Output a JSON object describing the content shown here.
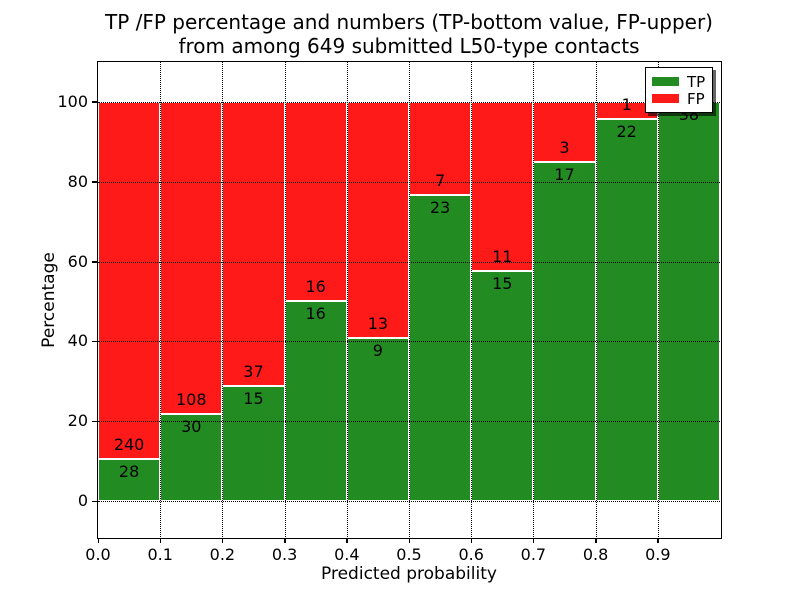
{
  "figure": {
    "title_line1": "TP /FP percentage and numbers (TP-bottom value, FP-upper)",
    "title_line2": "from among 649 submitted L50-type contacts"
  },
  "chart_data": {
    "type": "bar",
    "stacked": true,
    "normalized": "percent",
    "title": "TP /FP percentage and numbers (TP-bottom value, FP-upper)\nfrom among 649 submitted L50-type contacts",
    "xlabel": "Predicted probability",
    "ylabel": "Percentage",
    "categories": [
      "0.0-0.1",
      "0.1-0.2",
      "0.2-0.3",
      "0.3-0.4",
      "0.4-0.5",
      "0.5-0.6",
      "0.6-0.7",
      "0.7-0.8",
      "0.8-0.9",
      "0.9-1.0"
    ],
    "series": [
      {
        "name": "TP",
        "color": "#228b22",
        "values": [
          28,
          30,
          15,
          16,
          9,
          23,
          15,
          17,
          22,
          38
        ]
      },
      {
        "name": "FP",
        "color": "#ff1a1a",
        "values": [
          240,
          108,
          37,
          16,
          13,
          7,
          11,
          3,
          1,
          0
        ]
      }
    ],
    "tp_percent_heights": [
      10.45,
      21.74,
      28.85,
      50.0,
      40.91,
      76.67,
      57.69,
      85.0,
      95.65,
      100.0
    ],
    "xticks": [
      "0.0",
      "0.1",
      "0.2",
      "0.3",
      "0.4",
      "0.5",
      "0.6",
      "0.7",
      "0.8",
      "0.9"
    ],
    "yticks": [
      "0",
      "20",
      "40",
      "60",
      "80",
      "100"
    ],
    "xlim": [
      0.0,
      1.0
    ],
    "ylim": [
      -9,
      110
    ],
    "grid": "dotted",
    "legend_position": "upper right"
  }
}
